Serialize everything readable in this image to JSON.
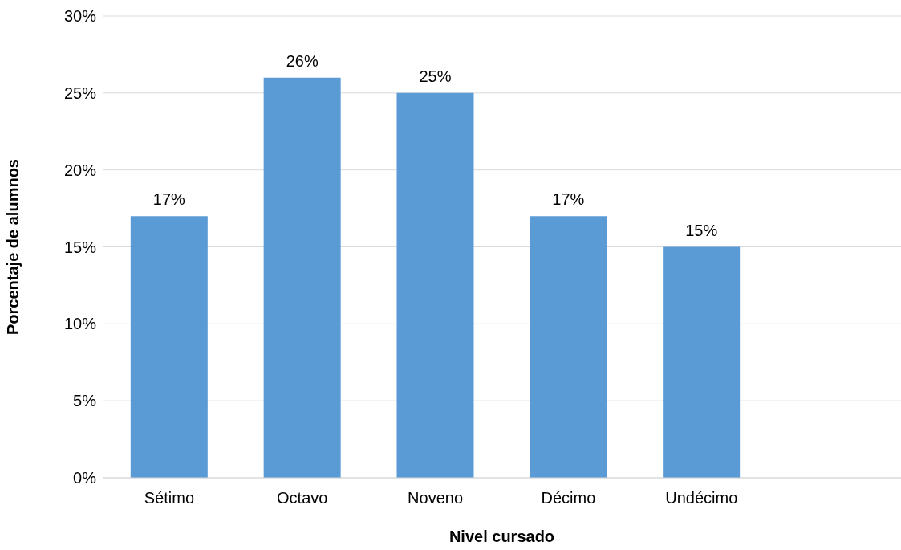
{
  "chart_data": {
    "type": "bar",
    "xlabel": "Nivel cursado",
    "ylabel": "Porcentaje de alumnos",
    "categories": [
      "Sétimo",
      "Octavo",
      "Noveno",
      "Décimo",
      "Undécimo",
      null
    ],
    "values": [
      17,
      26,
      25,
      17,
      15,
      null
    ],
    "value_labels": [
      "17%",
      "26%",
      "25%",
      "17%",
      "15%",
      null
    ],
    "color": "#5b9bd5",
    "ylim": [
      0,
      30
    ],
    "yticks": [
      {
        "value": 0,
        "label": "0%"
      },
      {
        "value": 5,
        "label": "5%"
      },
      {
        "value": 10,
        "label": "10%"
      },
      {
        "value": 15,
        "label": "15%"
      },
      {
        "value": 20,
        "label": "20%"
      },
      {
        "value": 25,
        "label": "25%"
      },
      {
        "value": 30,
        "label": "30%"
      }
    ],
    "grid": "y",
    "legend": false
  }
}
